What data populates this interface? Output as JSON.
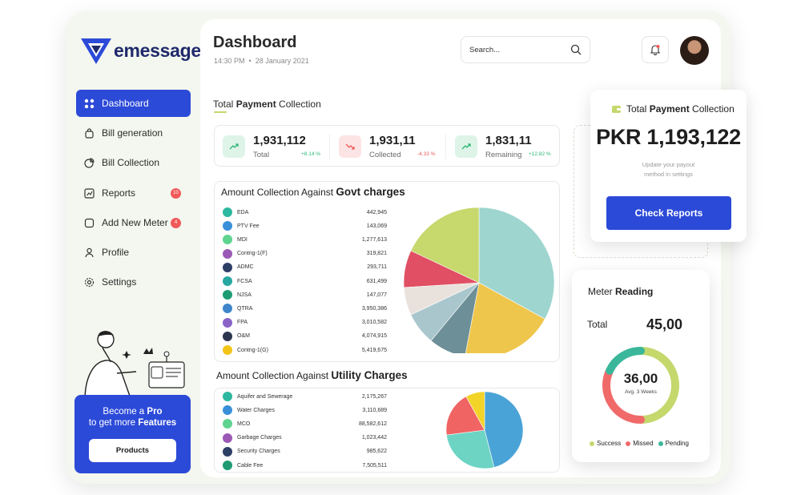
{
  "brand": {
    "name": "emessage."
  },
  "sidebar": {
    "items": [
      {
        "label": "Dashboard",
        "icon": "grid-icon",
        "active": true
      },
      {
        "label": "Bill generation",
        "icon": "bag-icon"
      },
      {
        "label": "Bill Collection",
        "icon": "pie-icon"
      },
      {
        "label": "Reports",
        "icon": "chart-icon",
        "badge": "10"
      },
      {
        "label": "Add New Meter",
        "icon": "square-icon",
        "badge": "4"
      },
      {
        "label": "Profile",
        "icon": "user-icon"
      },
      {
        "label": "Settings",
        "icon": "gear-icon"
      }
    ],
    "promo": {
      "line1_a": "Become a ",
      "line1_b": "Pro",
      "line2_a": "to get more ",
      "line2_b": "Features",
      "button": "Products"
    }
  },
  "header": {
    "title": "Dashboard",
    "time": "14:30 PM",
    "separator": "•",
    "date": "28 January 2021",
    "search_placeholder": "Search..."
  },
  "payment_section": {
    "title_a": "Total ",
    "title_b": "Payment",
    "title_c": " Collection"
  },
  "stats": [
    {
      "value": "1,931,112",
      "label": "Total",
      "change": "+8.14 %",
      "trend": "up"
    },
    {
      "value": "1,931,11",
      "label": "Collected",
      "change": "-4.33 %",
      "trend": "down"
    },
    {
      "value": "1,831,11",
      "label": "Remaining",
      "change": "+12.82 %",
      "trend": "up"
    }
  ],
  "govt_card": {
    "title_a": "Amount Collection Against ",
    "title_b": "Govt charges"
  },
  "utility_card": {
    "title_a": "Amount Collection Against ",
    "title_b": "Utility Charges"
  },
  "pay_card": {
    "title_a": "Total ",
    "title_b": "Payment",
    "title_c": " Collection",
    "amount": "PKR 1,193,122",
    "note_l1": "Update your payout",
    "note_l2": "method in settings",
    "button": "Check Reports"
  },
  "meter": {
    "title_a": "Meter ",
    "title_b": "Reading",
    "total_label": "Total",
    "total_value": "45,00",
    "center_value": "36,00",
    "center_sub": "Avg. 3 Weeks",
    "legend": [
      {
        "label": "Success",
        "color": "#c4d86c"
      },
      {
        "label": "Missed",
        "color": "#f06a6a"
      },
      {
        "label": "Pending",
        "color": "#3ab79a"
      }
    ],
    "segments": [
      0.5,
      0.32,
      0.18
    ]
  },
  "chart_data": [
    {
      "type": "pie",
      "title": "Amount Collection Against Govt charges",
      "categories": [
        "EDA",
        "PTV Fee",
        "MDI",
        "Contng-1(F)",
        "ADMC",
        "FCSA",
        "NJSA",
        "QTRA",
        "FPA",
        "O&M",
        "Contng-1(G)"
      ],
      "labels": [
        "442,945",
        "143,069",
        "1,277,613",
        "319,821",
        "293,711",
        "631,499",
        "147,077",
        "3,950,386",
        "3,010,582",
        "4,074,915",
        "5,419,675"
      ],
      "values": [
        442945,
        143069,
        1277613,
        319821,
        293711,
        631499,
        147077,
        3950386,
        3010582,
        4074915,
        5419675
      ],
      "colors": [
        "#2eb8a0",
        "#3a8fd9",
        "#5ed48f",
        "#9b59b6",
        "#2e3f66",
        "#27a7a1",
        "#1e9b73",
        "#3e86c9",
        "#8a63c7",
        "#2c3550",
        "#f2c418"
      ],
      "pie_colors": [
        "#9ed5cf",
        "#efc64c",
        "#6d8f97",
        "#a9c6cd",
        "#e9e2dc",
        "#e04f63",
        "#c7d86c"
      ],
      "pie_fractions": [
        0.33,
        0.2,
        0.08,
        0.07,
        0.06,
        0.08,
        0.18
      ]
    },
    {
      "type": "pie",
      "title": "Amount Collection Against Utility Charges",
      "categories": [
        "Aquifer and Sewerage",
        "Water Charges",
        "MCO",
        "Garbage Charges",
        "Security Charges",
        "Cable Fee"
      ],
      "labels": [
        "2,175,267",
        "3,110,689",
        "88,582,612",
        "1,023,442",
        "985,622",
        "7,505,511"
      ],
      "values": [
        2175267,
        3110689,
        88582612,
        1023442,
        985622,
        7505511
      ],
      "colors": [
        "#2eb8a0",
        "#3a8fd9",
        "#5ed48f",
        "#9b59b6",
        "#2e3f66",
        "#1e9b73"
      ],
      "pie_colors": [
        "#4aa3d6",
        "#6dd4c4",
        "#f06464",
        "#f2d327"
      ],
      "pie_fractions": [
        0.46,
        0.27,
        0.19,
        0.08
      ]
    }
  ]
}
